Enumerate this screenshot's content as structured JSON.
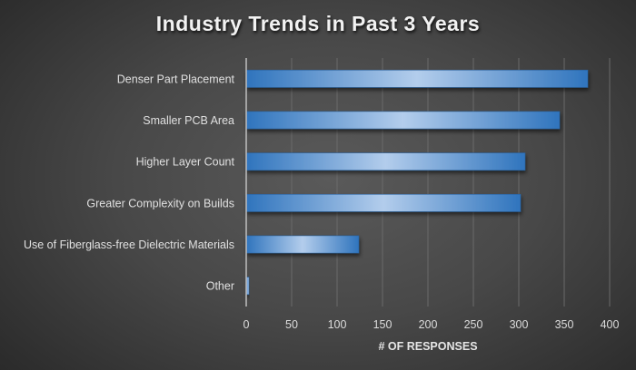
{
  "chart_data": {
    "type": "bar",
    "orientation": "horizontal",
    "title": "Industry Trends in Past 3 Years",
    "xlabel": "# OF RESPONSES",
    "ylabel": "",
    "categories": [
      "Denser Part Placement",
      "Smaller PCB Area",
      "Higher Layer Count",
      "Greater Complexity on Builds",
      "Use of Fiberglass-free Dielectric Materials",
      "Other"
    ],
    "values": [
      376,
      345,
      307,
      302,
      124,
      3
    ],
    "xlim": [
      0,
      400
    ],
    "xticks": [
      0,
      50,
      100,
      150,
      200,
      250,
      300,
      350,
      400
    ],
    "grid": true,
    "legend": "none",
    "colors": {
      "bar_edge": "#2e75b6",
      "bar_highlight": "#b4cfee",
      "gridline": "#6a6a6a",
      "axis": "#bfbfbf",
      "text": "#e0e0e0"
    }
  }
}
